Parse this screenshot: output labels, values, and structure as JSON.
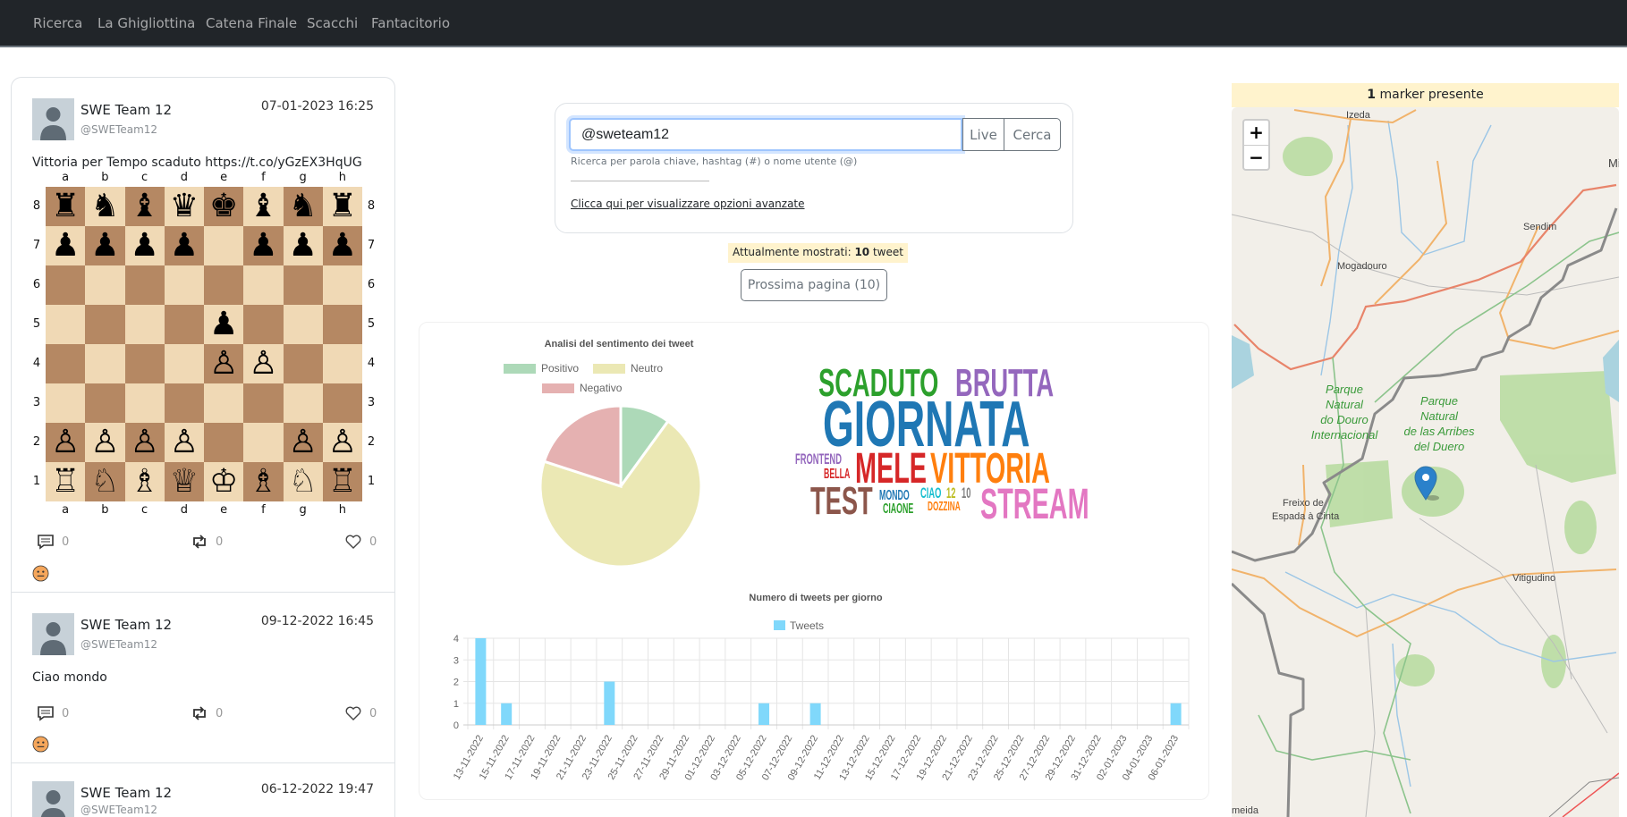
{
  "nav": {
    "items": [
      "Ricerca",
      "La Ghigliottina",
      "Catena Finale",
      "Scacchi",
      "Fantacitorio"
    ]
  },
  "tweets": [
    {
      "name": "SWE Team 12",
      "handle": "@SWETeam12",
      "date": "07-01-2023 16:25",
      "text": "Vittoria per Tempo scaduto https://t.co/yGzEX3HqUG",
      "replies": "0",
      "retweets": "0",
      "likes": "0",
      "sentiment": "neutral-face-icon"
    },
    {
      "name": "SWE Team 12",
      "handle": "@SWETeam12",
      "date": "09-12-2022 16:45",
      "text": "Ciao mondo",
      "replies": "0",
      "retweets": "0",
      "likes": "0",
      "sentiment": "neutral-face-icon"
    },
    {
      "name": "SWE Team 12",
      "handle": "@SWETeam12",
      "date": "06-12-2022 19:47"
    }
  ],
  "chessboard": {
    "files": [
      "a",
      "b",
      "c",
      "d",
      "e",
      "f",
      "g",
      "h"
    ],
    "ranks": [
      "8",
      "7",
      "6",
      "5",
      "4",
      "3",
      "2",
      "1"
    ],
    "position": [
      "rnbqkbnr",
      "pppp1ppp",
      "8",
      "4p3",
      "4PP2",
      "8",
      "PPPP2PP",
      "RNBQKBNR"
    ],
    "light_color": "#f0d9b5",
    "dark_color": "#b58863"
  },
  "search": {
    "value": "@sweteam12",
    "live_label": "Live",
    "search_label": "Cerca",
    "help": "Ricerca per parola chiave, hashtag (#) o nome utente (@)",
    "advanced_link": "Clicca qui per visualizzare opzioni avanzate"
  },
  "results": {
    "prefix": "Attualmente mostrati: ",
    "count": "10",
    "suffix": " tweet",
    "next_label": "Prossima pagina (10)"
  },
  "chart_data": [
    {
      "type": "pie",
      "title": "Analisi del sentimento dei tweet",
      "categories": [
        "Positivo",
        "Neutro",
        "Negativo"
      ],
      "values": [
        1,
        7,
        2
      ],
      "colors": [
        "#add9b8",
        "#ebe8b4",
        "#e5b1b1"
      ],
      "legend": "top"
    },
    {
      "type": "bar",
      "title": "Numero di tweets per giorno",
      "categories": [
        "13-11-2022",
        "15-11-2022",
        "17-11-2022",
        "19-11-2022",
        "21-11-2022",
        "23-11-2022",
        "25-11-2022",
        "27-11-2022",
        "29-11-2022",
        "01-12-2022",
        "03-12-2022",
        "05-12-2022",
        "07-12-2022",
        "09-12-2022",
        "11-12-2022",
        "13-12-2022",
        "15-12-2022",
        "17-12-2022",
        "19-12-2022",
        "21-12-2022",
        "23-12-2022",
        "25-12-2022",
        "27-12-2022",
        "29-12-2022",
        "31-12-2022",
        "02-01-2023",
        "04-01-2023",
        "06-01-2023"
      ],
      "series": [
        {
          "name": "Tweets",
          "values": [
            4,
            1,
            0,
            0,
            0,
            2,
            0,
            0,
            0,
            0,
            0,
            1,
            0,
            1,
            0,
            0,
            0,
            0,
            0,
            0,
            0,
            0,
            0,
            0,
            0,
            0,
            0,
            1
          ]
        }
      ],
      "ylim": [
        0,
        4
      ],
      "yticks": [
        "0",
        "1",
        "2",
        "3",
        "4"
      ],
      "grid": true,
      "legend": "top",
      "color": "#80d8fb"
    }
  ],
  "wordcloud": [
    {
      "word": "SCADUTO",
      "color": "#2ca02c"
    },
    {
      "word": "BRUTTA",
      "color": "#9467bd"
    },
    {
      "word": "GIORNATA",
      "color": "#1f77b4"
    },
    {
      "word": "FRONTEND",
      "color": "#9467bd"
    },
    {
      "word": "BELLA",
      "color": "#d62728"
    },
    {
      "word": "MELE",
      "color": "#d62728"
    },
    {
      "word": "VITTORIA",
      "color": "#ff7f0e"
    },
    {
      "word": "TEST",
      "color": "#8c564b"
    },
    {
      "word": "MONDO",
      "color": "#1f77b4"
    },
    {
      "word": "CIAONE",
      "color": "#2ca02c"
    },
    {
      "word": "CIAO",
      "color": "#17becf"
    },
    {
      "word": "12",
      "color": "#bcbd22"
    },
    {
      "word": "10",
      "color": "#7f7f7f"
    },
    {
      "word": "DOZZINA",
      "color": "#ff7f0e"
    },
    {
      "word": "STREAM",
      "color": "#e377c2"
    }
  ],
  "map": {
    "marker_count": "1",
    "marker_label": " marker presente",
    "zoom_in": "+",
    "zoom_out": "−",
    "places": [
      "Izeda",
      "Mi",
      "Sendim",
      "Mogadouro",
      "Parque",
      "Natural",
      "do Douro",
      "Internacional",
      "Parque",
      "Natural",
      "de las Arribes",
      "del Duero",
      "Freixo de",
      "Espada à Cinta",
      "Vitigudino",
      "meida"
    ]
  }
}
